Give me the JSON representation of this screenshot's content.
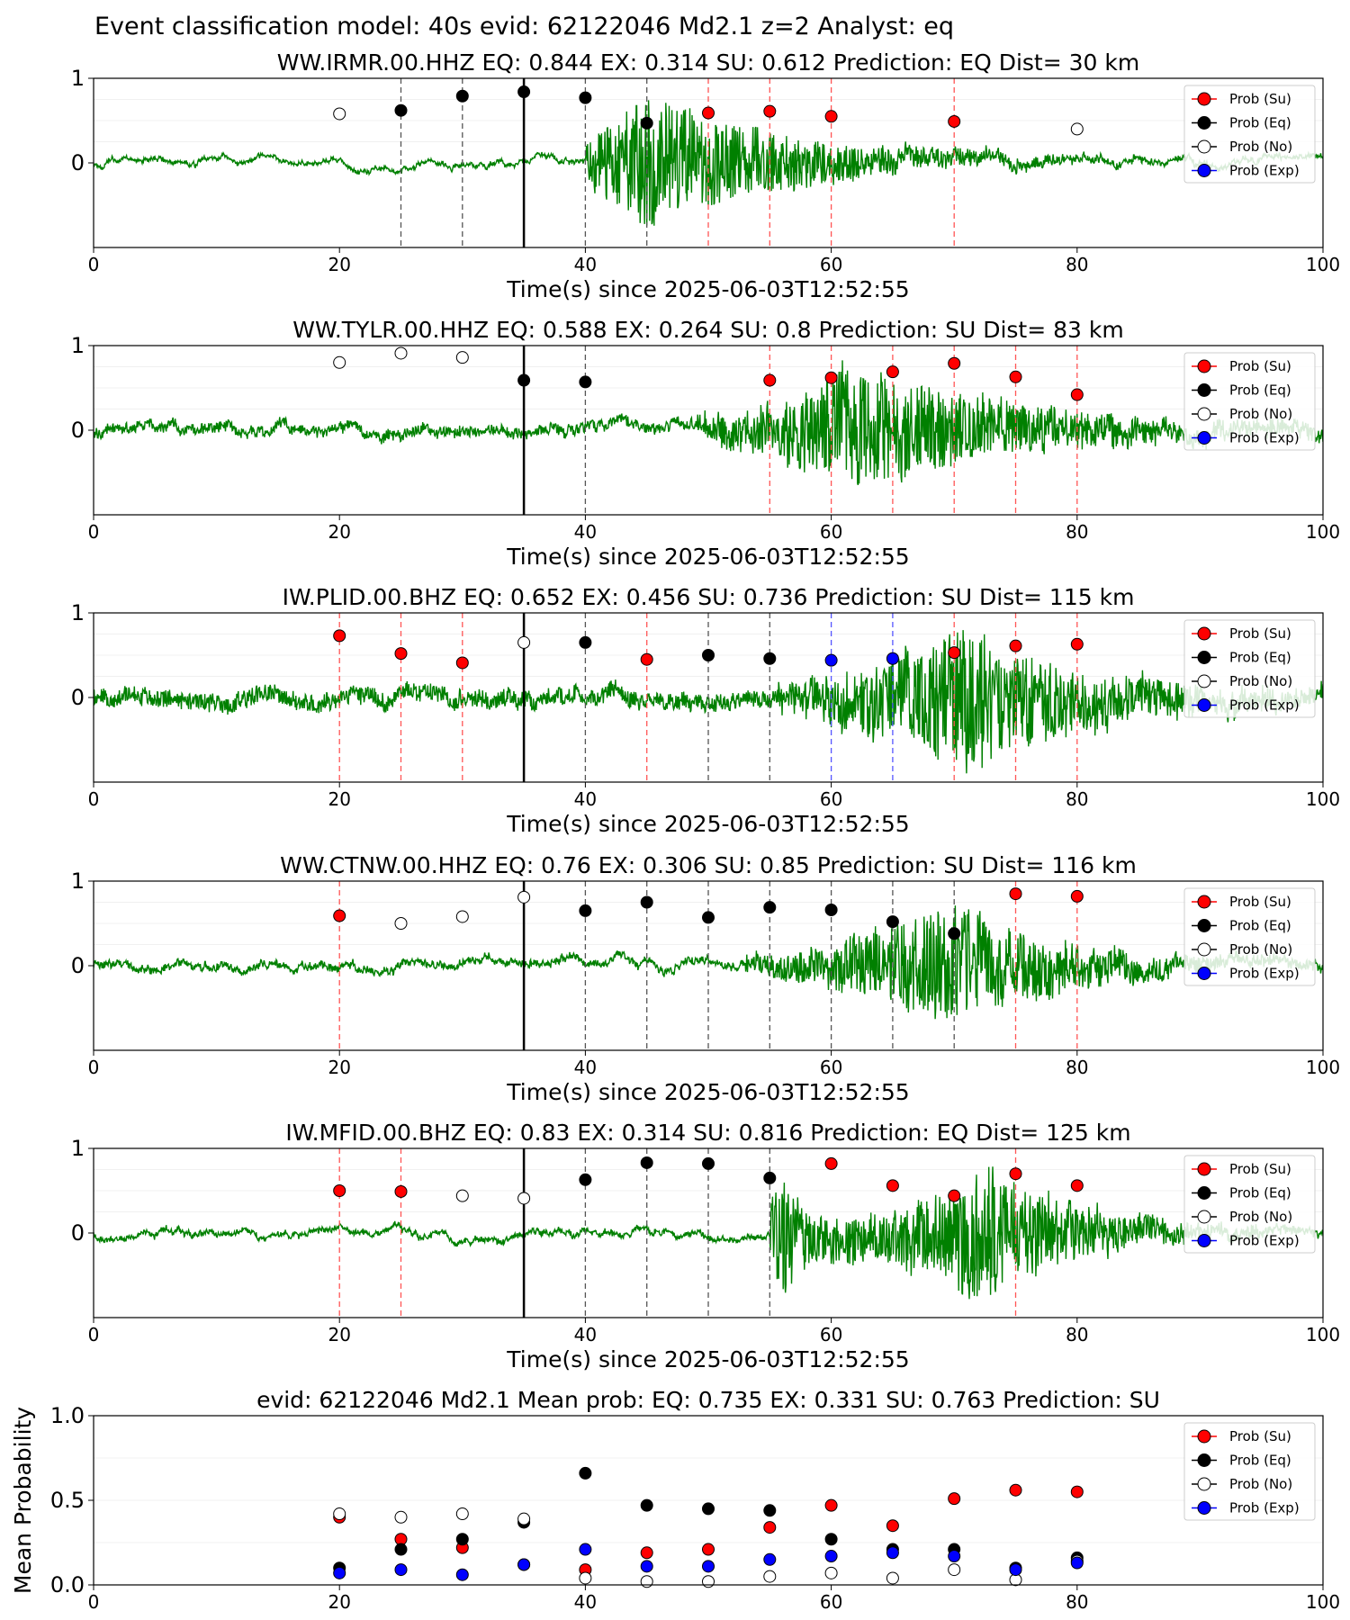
{
  "figure_title": "Event classification model: 40s evid: 62122046 Md2.1 z=2 Analyst: eq",
  "colors": {
    "su": "#ff0000",
    "eq": "#000000",
    "no": "#ffffff",
    "exp": "#0000ff",
    "waveform": "#008000",
    "su_line": "#ff5555",
    "eq_line": "#555555",
    "exp_line": "#5555ff",
    "origin_line": "#000000"
  },
  "legend_labels": [
    "Prob (Su)",
    "Prob (Eq)",
    "Prob (No)",
    "Prob (Exp)"
  ],
  "chart_data": [
    {
      "type": "scatter",
      "title": "WW.IRMR.00.HHZ   EQ: 0.844  EX: 0.314  SU: 0.612   Prediction: EQ    Dist= 30 km",
      "xlabel": "Time(s) since 2025-06-03T12:52:55",
      "xlim": [
        0,
        100
      ],
      "ylim": [
        -1,
        1
      ],
      "xticks": [
        "0",
        "20",
        "40",
        "60",
        "80",
        "100"
      ],
      "yticks": [
        "1",
        "0"
      ],
      "origin_time": 35,
      "waveform": {
        "onset": 40,
        "peak_time": 45,
        "amplitude": 0.8,
        "decay": 12,
        "noise": 0.02,
        "seed": 11,
        "style": "impulsive"
      },
      "window_lines": [
        {
          "x": 25,
          "cls": "eq"
        },
        {
          "x": 30,
          "cls": "eq"
        },
        {
          "x": 40,
          "cls": "eq"
        },
        {
          "x": 45,
          "cls": "eq"
        },
        {
          "x": 50,
          "cls": "su"
        },
        {
          "x": 55,
          "cls": "su"
        },
        {
          "x": 60,
          "cls": "su"
        },
        {
          "x": 70,
          "cls": "su"
        }
      ],
      "points": [
        {
          "x": 20,
          "y": 0.58,
          "cls": "no"
        },
        {
          "x": 25,
          "y": 0.62,
          "cls": "eq"
        },
        {
          "x": 30,
          "y": 0.79,
          "cls": "eq"
        },
        {
          "x": 35,
          "y": 0.84,
          "cls": "eq"
        },
        {
          "x": 40,
          "y": 0.77,
          "cls": "eq"
        },
        {
          "x": 45,
          "y": 0.47,
          "cls": "eq"
        },
        {
          "x": 50,
          "y": 0.59,
          "cls": "su"
        },
        {
          "x": 55,
          "y": 0.61,
          "cls": "su"
        },
        {
          "x": 60,
          "y": 0.55,
          "cls": "su"
        },
        {
          "x": 70,
          "y": 0.49,
          "cls": "su"
        },
        {
          "x": 80,
          "y": 0.4,
          "cls": "no"
        }
      ]
    },
    {
      "type": "scatter",
      "title": "WW.TYLR.00.HHZ   EQ: 0.588  EX: 0.264  SU: 0.8    Prediction: SU    Dist= 83 km",
      "xlabel": "Time(s) since 2025-06-03T12:52:55",
      "xlim": [
        0,
        100
      ],
      "ylim": [
        -1,
        1
      ],
      "xticks": [
        "0",
        "20",
        "40",
        "60",
        "80",
        "100"
      ],
      "yticks": [
        "1",
        "0"
      ],
      "origin_time": 35,
      "waveform": {
        "onset": 49,
        "peak_time": 62,
        "amplitude": 0.75,
        "decay": 14,
        "noise": 0.06,
        "seed": 23,
        "style": "emergent"
      },
      "window_lines": [
        {
          "x": 40,
          "cls": "eq"
        },
        {
          "x": 55,
          "cls": "su"
        },
        {
          "x": 60,
          "cls": "su"
        },
        {
          "x": 65,
          "cls": "su"
        },
        {
          "x": 70,
          "cls": "su"
        },
        {
          "x": 75,
          "cls": "su"
        },
        {
          "x": 80,
          "cls": "su"
        }
      ],
      "points": [
        {
          "x": 20,
          "y": 0.8,
          "cls": "no"
        },
        {
          "x": 25,
          "y": 0.91,
          "cls": "no"
        },
        {
          "x": 30,
          "y": 0.86,
          "cls": "no"
        },
        {
          "x": 35,
          "y": 0.59,
          "cls": "eq"
        },
        {
          "x": 40,
          "y": 0.57,
          "cls": "eq"
        },
        {
          "x": 55,
          "y": 0.59,
          "cls": "su"
        },
        {
          "x": 60,
          "y": 0.62,
          "cls": "su"
        },
        {
          "x": 65,
          "y": 0.69,
          "cls": "su"
        },
        {
          "x": 70,
          "y": 0.79,
          "cls": "su"
        },
        {
          "x": 75,
          "y": 0.63,
          "cls": "su"
        },
        {
          "x": 80,
          "y": 0.42,
          "cls": "su"
        }
      ]
    },
    {
      "type": "scatter",
      "title": "IW.PLID.00.BHZ   EQ: 0.652  EX: 0.456  SU: 0.736   Prediction: SU    Dist= 115 km",
      "xlabel": "Time(s) since 2025-06-03T12:52:55",
      "xlim": [
        0,
        100
      ],
      "ylim": [
        -1,
        1
      ],
      "xticks": [
        "0",
        "20",
        "40",
        "60",
        "80",
        "100"
      ],
      "yticks": [
        "1",
        "0"
      ],
      "origin_time": 35,
      "waveform": {
        "onset": 55,
        "peak_time": 71,
        "amplitude": 0.85,
        "decay": 10,
        "noise": 0.1,
        "seed": 37,
        "style": "emergent"
      },
      "window_lines": [
        {
          "x": 20,
          "cls": "su"
        },
        {
          "x": 25,
          "cls": "su"
        },
        {
          "x": 30,
          "cls": "su"
        },
        {
          "x": 40,
          "cls": "eq"
        },
        {
          "x": 45,
          "cls": "su"
        },
        {
          "x": 50,
          "cls": "eq"
        },
        {
          "x": 55,
          "cls": "eq"
        },
        {
          "x": 60,
          "cls": "exp"
        },
        {
          "x": 65,
          "cls": "exp"
        },
        {
          "x": 70,
          "cls": "su"
        },
        {
          "x": 75,
          "cls": "su"
        },
        {
          "x": 80,
          "cls": "su"
        }
      ],
      "points": [
        {
          "x": 20,
          "y": 0.73,
          "cls": "su"
        },
        {
          "x": 25,
          "y": 0.52,
          "cls": "su"
        },
        {
          "x": 30,
          "y": 0.41,
          "cls": "su"
        },
        {
          "x": 35,
          "y": 0.65,
          "cls": "no"
        },
        {
          "x": 40,
          "y": 0.65,
          "cls": "eq"
        },
        {
          "x": 45,
          "y": 0.45,
          "cls": "su"
        },
        {
          "x": 50,
          "y": 0.5,
          "cls": "eq"
        },
        {
          "x": 55,
          "y": 0.46,
          "cls": "eq"
        },
        {
          "x": 60,
          "y": 0.44,
          "cls": "exp"
        },
        {
          "x": 65,
          "y": 0.46,
          "cls": "exp"
        },
        {
          "x": 70,
          "y": 0.53,
          "cls": "su"
        },
        {
          "x": 75,
          "y": 0.61,
          "cls": "su"
        },
        {
          "x": 80,
          "y": 0.63,
          "cls": "su"
        }
      ]
    },
    {
      "type": "scatter",
      "title": "WW.CTNW.00.HHZ   EQ: 0.76  EX: 0.306  SU: 0.85    Prediction: SU    Dist= 116 km",
      "xlabel": "Time(s) since 2025-06-03T12:52:55",
      "xlim": [
        0,
        100
      ],
      "ylim": [
        -1,
        1
      ],
      "xticks": [
        "0",
        "20",
        "40",
        "60",
        "80",
        "100"
      ],
      "yticks": [
        "1",
        "0"
      ],
      "origin_time": 35,
      "waveform": {
        "onset": 53,
        "peak_time": 70,
        "amplitude": 0.7,
        "decay": 10,
        "noise": 0.04,
        "seed": 41,
        "style": "emergent"
      },
      "window_lines": [
        {
          "x": 20,
          "cls": "su"
        },
        {
          "x": 40,
          "cls": "eq"
        },
        {
          "x": 45,
          "cls": "eq"
        },
        {
          "x": 50,
          "cls": "eq"
        },
        {
          "x": 55,
          "cls": "eq"
        },
        {
          "x": 60,
          "cls": "eq"
        },
        {
          "x": 65,
          "cls": "eq"
        },
        {
          "x": 70,
          "cls": "eq"
        },
        {
          "x": 75,
          "cls": "su"
        },
        {
          "x": 80,
          "cls": "su"
        }
      ],
      "points": [
        {
          "x": 20,
          "y": 0.59,
          "cls": "su"
        },
        {
          "x": 25,
          "y": 0.5,
          "cls": "no"
        },
        {
          "x": 30,
          "y": 0.58,
          "cls": "no"
        },
        {
          "x": 35,
          "y": 0.81,
          "cls": "no"
        },
        {
          "x": 40,
          "y": 0.65,
          "cls": "eq"
        },
        {
          "x": 45,
          "y": 0.75,
          "cls": "eq"
        },
        {
          "x": 50,
          "y": 0.57,
          "cls": "eq"
        },
        {
          "x": 55,
          "y": 0.69,
          "cls": "eq"
        },
        {
          "x": 60,
          "y": 0.66,
          "cls": "eq"
        },
        {
          "x": 65,
          "y": 0.52,
          "cls": "eq"
        },
        {
          "x": 70,
          "y": 0.38,
          "cls": "eq"
        },
        {
          "x": 75,
          "y": 0.85,
          "cls": "su"
        },
        {
          "x": 80,
          "y": 0.82,
          "cls": "su"
        }
      ]
    },
    {
      "type": "scatter",
      "title": "IW.MFID.00.BHZ   EQ: 0.83  EX: 0.314  SU: 0.816   Prediction: EQ    Dist= 125 km",
      "xlabel": "Time(s) since 2025-06-03T12:52:55",
      "xlim": [
        0,
        100
      ],
      "ylim": [
        -1,
        1
      ],
      "xticks": [
        "0",
        "20",
        "40",
        "60",
        "80",
        "100"
      ],
      "yticks": [
        "1",
        "0"
      ],
      "origin_time": 35,
      "waveform": {
        "onset": 55,
        "peak_time": 73,
        "amplitude": 0.8,
        "decay": 8,
        "noise": 0.03,
        "seed": 53,
        "style": "double"
      },
      "window_lines": [
        {
          "x": 20,
          "cls": "su"
        },
        {
          "x": 25,
          "cls": "su"
        },
        {
          "x": 40,
          "cls": "eq"
        },
        {
          "x": 45,
          "cls": "eq"
        },
        {
          "x": 50,
          "cls": "eq"
        },
        {
          "x": 55,
          "cls": "eq"
        },
        {
          "x": 75,
          "cls": "su"
        }
      ],
      "points": [
        {
          "x": 20,
          "y": 0.5,
          "cls": "su"
        },
        {
          "x": 25,
          "y": 0.49,
          "cls": "su"
        },
        {
          "x": 30,
          "y": 0.44,
          "cls": "no"
        },
        {
          "x": 35,
          "y": 0.41,
          "cls": "no"
        },
        {
          "x": 40,
          "y": 0.63,
          "cls": "eq"
        },
        {
          "x": 45,
          "y": 0.83,
          "cls": "eq"
        },
        {
          "x": 50,
          "y": 0.82,
          "cls": "eq"
        },
        {
          "x": 55,
          "y": 0.65,
          "cls": "eq"
        },
        {
          "x": 60,
          "y": 0.82,
          "cls": "su"
        },
        {
          "x": 65,
          "y": 0.56,
          "cls": "su"
        },
        {
          "x": 70,
          "y": 0.44,
          "cls": "su"
        },
        {
          "x": 75,
          "y": 0.7,
          "cls": "su"
        },
        {
          "x": 80,
          "y": 0.56,
          "cls": "su"
        }
      ]
    },
    {
      "type": "scatter",
      "title": "evid: 62122046  Md2.1   Mean prob:   EQ: 0.735  EX: 0.331  SU: 0.763   Prediction: SU",
      "ylabel": "Mean Probability",
      "xlim": [
        0,
        100
      ],
      "ylim": [
        0,
        1
      ],
      "xticks": [
        "0",
        "20",
        "40",
        "60",
        "80",
        "100"
      ],
      "yticks": [
        "1.0",
        "0.5",
        "0.0"
      ],
      "series": [
        {
          "name": "Prob (Su)",
          "cls": "su",
          "x": [
            20,
            25,
            30,
            35,
            40,
            45,
            50,
            55,
            60,
            65,
            70,
            75,
            80
          ],
          "y": [
            0.4,
            0.27,
            0.22,
            0.12,
            0.09,
            0.19,
            0.21,
            0.34,
            0.47,
            0.35,
            0.51,
            0.56,
            0.55
          ]
        },
        {
          "name": "Prob (Eq)",
          "cls": "eq",
          "x": [
            20,
            25,
            30,
            35,
            40,
            45,
            50,
            55,
            60,
            65,
            70,
            75,
            80
          ],
          "y": [
            0.1,
            0.21,
            0.27,
            0.37,
            0.66,
            0.47,
            0.45,
            0.44,
            0.27,
            0.21,
            0.21,
            0.1,
            0.16
          ]
        },
        {
          "name": "Prob (No)",
          "cls": "no",
          "x": [
            20,
            25,
            30,
            35,
            40,
            45,
            50,
            55,
            60,
            65,
            70,
            75,
            80
          ],
          "y": [
            0.42,
            0.4,
            0.42,
            0.39,
            0.04,
            0.02,
            0.02,
            0.05,
            0.07,
            0.04,
            0.09,
            0.03,
            0.14
          ]
        },
        {
          "name": "Prob (Exp)",
          "cls": "exp",
          "x": [
            20,
            25,
            30,
            35,
            40,
            45,
            50,
            55,
            60,
            65,
            70,
            75,
            80
          ],
          "y": [
            0.07,
            0.09,
            0.06,
            0.12,
            0.21,
            0.11,
            0.11,
            0.15,
            0.17,
            0.19,
            0.17,
            0.09,
            0.13
          ]
        }
      ]
    }
  ]
}
